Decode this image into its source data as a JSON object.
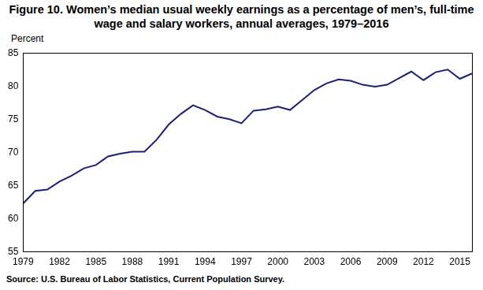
{
  "chart_data": {
    "type": "line",
    "title": "Figure 10. Women’s median usual weekly earnings as a percentage of men’s, full-time wage and salary workers, annual averages, 1979–2016",
    "y_label": "Percent",
    "source": "Source: U.S. Bureau of Labor Statistics, Current Population Survey.",
    "categories": [
      "1979",
      null,
      null,
      "1982",
      null,
      null,
      "1985",
      null,
      null,
      "1988",
      null,
      null,
      "1991",
      null,
      null,
      "1994",
      null,
      null,
      "1997",
      null,
      null,
      "2000",
      null,
      null,
      "2003",
      null,
      null,
      "2006",
      null,
      null,
      "2009",
      null,
      null,
      "2012",
      null,
      null,
      "2015",
      null
    ],
    "values": [
      62.3,
      64.2,
      64.4,
      65.6,
      66.5,
      67.6,
      68.1,
      69.4,
      69.8,
      70.1,
      70.1,
      71.9,
      74.2,
      75.8,
      77.1,
      76.4,
      75.4,
      75.0,
      74.4,
      76.3,
      76.5,
      76.9,
      76.4,
      77.9,
      79.4,
      80.4,
      81.0,
      80.8,
      80.2,
      79.9,
      80.2,
      81.2,
      82.2,
      80.9,
      82.1,
      82.5,
      81.1,
      81.9
    ],
    "color": "#1b1f7a",
    "ylim": [
      55,
      85
    ],
    "yticks": [
      55,
      60,
      65,
      70,
      75,
      80,
      85
    ],
    "grid": false
  }
}
